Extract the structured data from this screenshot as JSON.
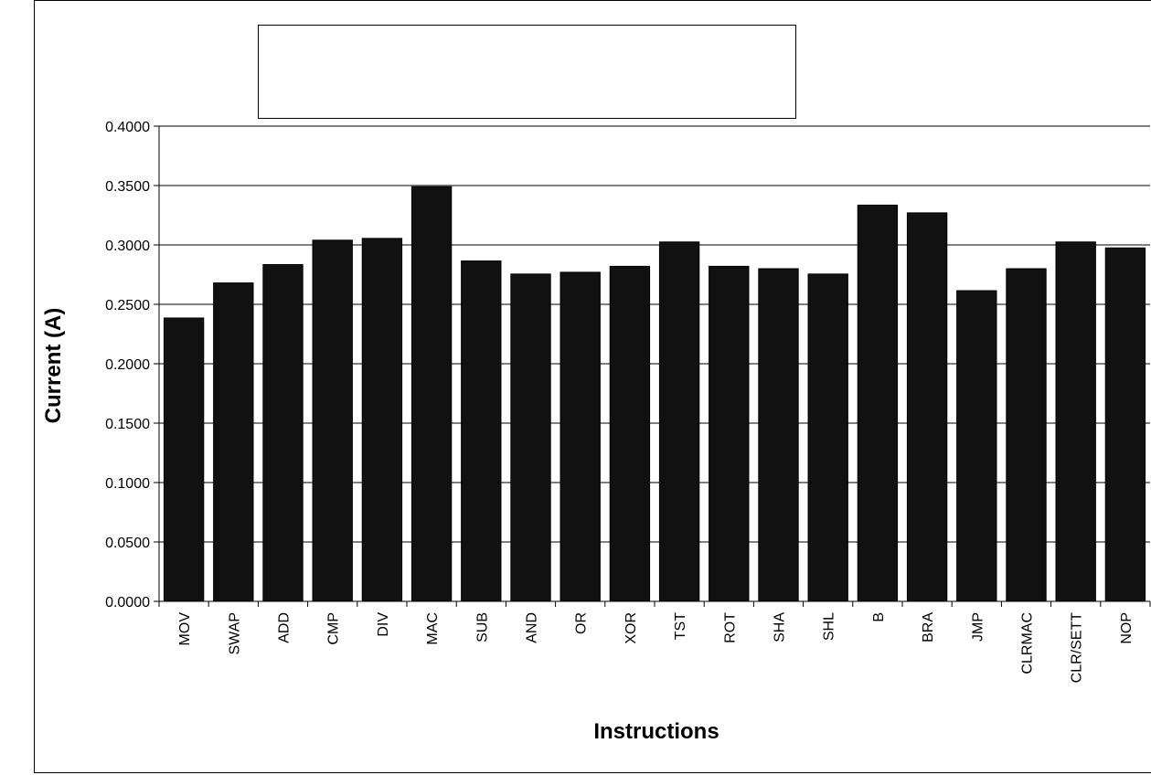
{
  "chart_data": {
    "type": "bar",
    "categories": [
      "MOV",
      "SWAP",
      "ADD",
      "CMP",
      "DIV",
      "MAC",
      "SUB",
      "AND",
      "OR",
      "XOR",
      "TST",
      "ROT",
      "SHA",
      "SHL",
      "B",
      "BRA",
      "JMP",
      "CLRMAC",
      "CLR/SETT",
      "NOP"
    ],
    "values": [
      0.2385,
      0.268,
      0.2835,
      0.304,
      0.3055,
      0.349,
      0.2865,
      0.2755,
      0.277,
      0.282,
      0.3025,
      0.282,
      0.28,
      0.2755,
      0.3335,
      0.327,
      0.2615,
      0.28,
      0.3025,
      0.2975
    ],
    "xlabel": "Instructions",
    "ylabel": "Current (A)",
    "ylim": [
      0,
      0.4
    ],
    "yticks": [
      "0.0000",
      "0.0500",
      "0.1000",
      "0.1500",
      "0.2000",
      "0.2500",
      "0.3000",
      "0.3500",
      "0.4000"
    ],
    "grid": true,
    "legend": "top (empty box)",
    "colors": {
      "bar": "#111111",
      "grid": "#000000",
      "background": "#ffffff"
    }
  }
}
